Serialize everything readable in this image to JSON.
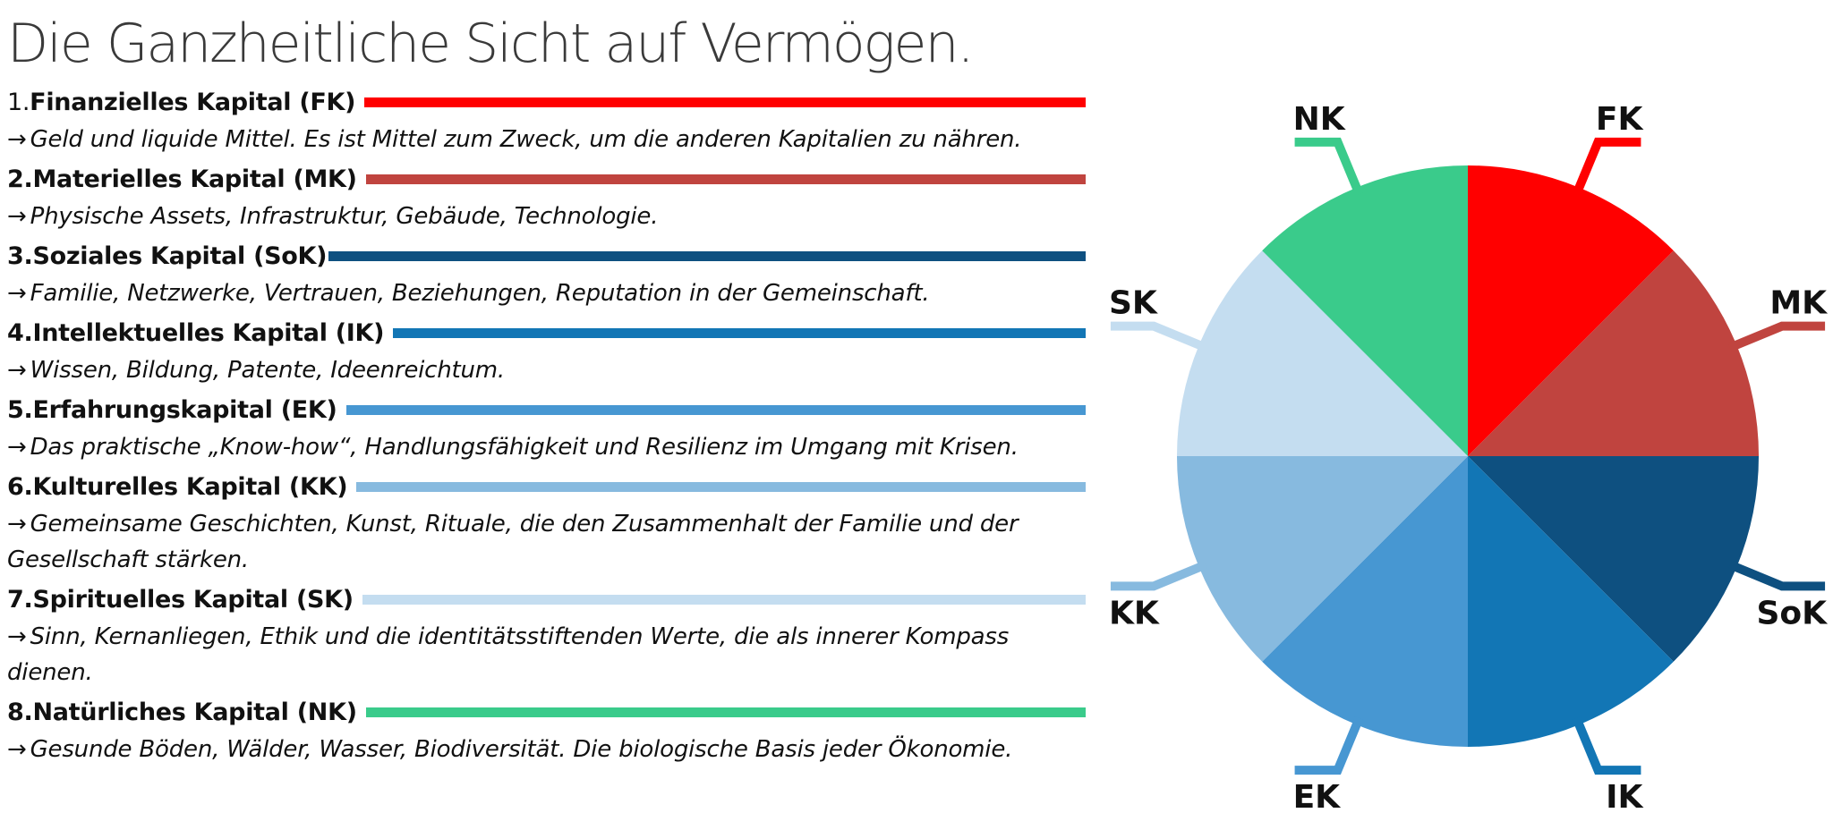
{
  "title": "Die Ganzheitliche Sicht auf Vermögen.",
  "arrow_glyph": "→",
  "items": [
    {
      "num": "1.",
      "heading": "Finanzielles Kapital (FK)",
      "description": "Geld und liquide Mittel. Es ist Mittel zum Zweck, um die anderen Kapitalien zu nähren.",
      "color": "#ff0000"
    },
    {
      "num": "2.",
      "heading": "Materielles Kapital (MK)",
      "description": "Physische Assets, Infrastruktur, Gebäude, Technologie.",
      "color": "#c0443f"
    },
    {
      "num": "3.",
      "heading": "Soziales Kapital (SoK)",
      "description": "Familie, Netzwerke, Vertrauen, Beziehungen, Reputation in der Gemeinschaft.",
      "color": "#0e5080"
    },
    {
      "num": "4.",
      "heading": "Intellektuelles Kapital (IK)",
      "description": "Wissen, Bildung, Patente, Ideenreichtum.",
      "color": "#1276b5"
    },
    {
      "num": "5.",
      "heading": "Erfahrungskapital (EK)",
      "description": "Das praktische „Know-how“, Handlungsfähigkeit und Resilienz im Umgang mit Krisen.",
      "color": "#4797d2"
    },
    {
      "num": "6.",
      "heading": "Kulturelles Kapital (KK)",
      "description": "Gemeinsame Geschichten, Kunst, Rituale, die den Zusammenhalt der Familie und der Gesellschaft stärken.",
      "color": "#87badf"
    },
    {
      "num": "7.",
      "heading": "Spirituelles Kapital (SK)",
      "description": "Sinn, Kernanliegen, Ethik und die identitätsstiftenden Werte, die als innerer Kompass dienen.",
      "color": "#c4ddf0"
    },
    {
      "num": "8.",
      "heading": "Natürliches Kapital (NK)",
      "description": "Gesunde Böden, Wälder, Wasser, Biodiversität. Die biologische Basis jeder Ökonomie.",
      "color": "#3acb8b"
    }
  ],
  "diagram": {
    "segments": [
      {
        "label": "FK",
        "color": "#ff0000"
      },
      {
        "label": "MK",
        "color": "#c0443f"
      },
      {
        "label": "SoK",
        "color": "#0e5080"
      },
      {
        "label": "IK",
        "color": "#1276b5"
      },
      {
        "label": "EK",
        "color": "#4797d2"
      },
      {
        "label": "KK",
        "color": "#87badf"
      },
      {
        "label": "SK",
        "color": "#c4ddf0"
      },
      {
        "label": "NK",
        "color": "#3acb8b"
      }
    ]
  }
}
